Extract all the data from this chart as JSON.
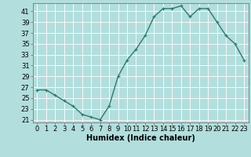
{
  "x": [
    0,
    1,
    2,
    3,
    4,
    5,
    6,
    7,
    8,
    9,
    10,
    11,
    12,
    13,
    14,
    15,
    16,
    17,
    18,
    19,
    20,
    21,
    22,
    23
  ],
  "y": [
    26.5,
    26.5,
    25.5,
    24.5,
    23.5,
    22,
    21.5,
    21,
    23.5,
    29,
    32,
    34,
    36.5,
    40,
    41.5,
    41.5,
    42,
    40,
    41.5,
    41.5,
    39,
    36.5,
    35,
    32
  ],
  "line_color": "#2d7a6e",
  "marker": "+",
  "bg_color": "#b2dedd",
  "grid_color": "#ffffff",
  "xlabel": "Humidex (Indice chaleur)",
  "yticks": [
    21,
    23,
    25,
    27,
    29,
    31,
    33,
    35,
    37,
    39,
    41
  ],
  "xticks": [
    0,
    1,
    2,
    3,
    4,
    5,
    6,
    7,
    8,
    9,
    10,
    11,
    12,
    13,
    14,
    15,
    16,
    17,
    18,
    19,
    20,
    21,
    22,
    23
  ],
  "ylim": [
    20.5,
    42.5
  ],
  "xlim": [
    -0.5,
    23.5
  ],
  "xlabel_fontsize": 7,
  "tick_fontsize": 6,
  "linewidth": 1.0,
  "markersize": 3
}
